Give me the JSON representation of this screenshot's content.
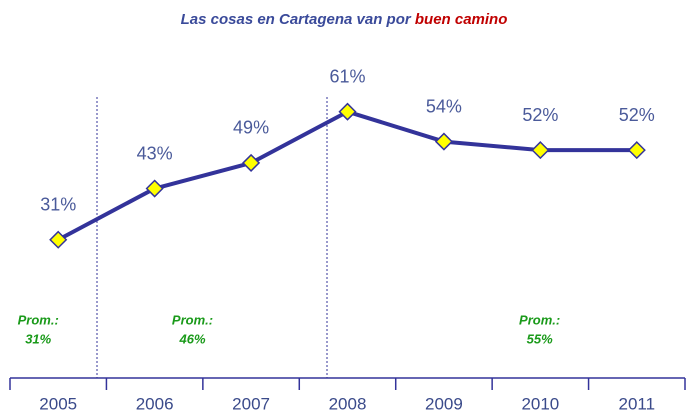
{
  "chart_data": {
    "type": "line",
    "title": [
      "Las cosas en Cartagena van por",
      "buen camino"
    ],
    "title_colors": [
      "#3a4a9a",
      "#c00000"
    ],
    "categories": [
      "2005",
      "2006",
      "2007",
      "2008",
      "2009",
      "2010",
      "2011"
    ],
    "series": [
      {
        "color": "#33339a",
        "marker_color": "#ffff00",
        "values": [
          31,
          43,
          49,
          61,
          54,
          52,
          52
        ],
        "value_labels": [
          "31%",
          "43%",
          "49%",
          "61%",
          "54%",
          "52%",
          "52%"
        ]
      }
    ],
    "ylim": [
      0,
      70
    ],
    "annotations": [
      {
        "lines": [
          "Prom.:",
          "31%"
        ],
        "category": 0
      },
      {
        "lines": [
          "Prom.:",
          "46%"
        ],
        "category": 1.6
      },
      {
        "lines": [
          "Prom.:",
          "55%"
        ],
        "category": 5.2
      }
    ],
    "annotation_color": "#1a9a1a"
  }
}
